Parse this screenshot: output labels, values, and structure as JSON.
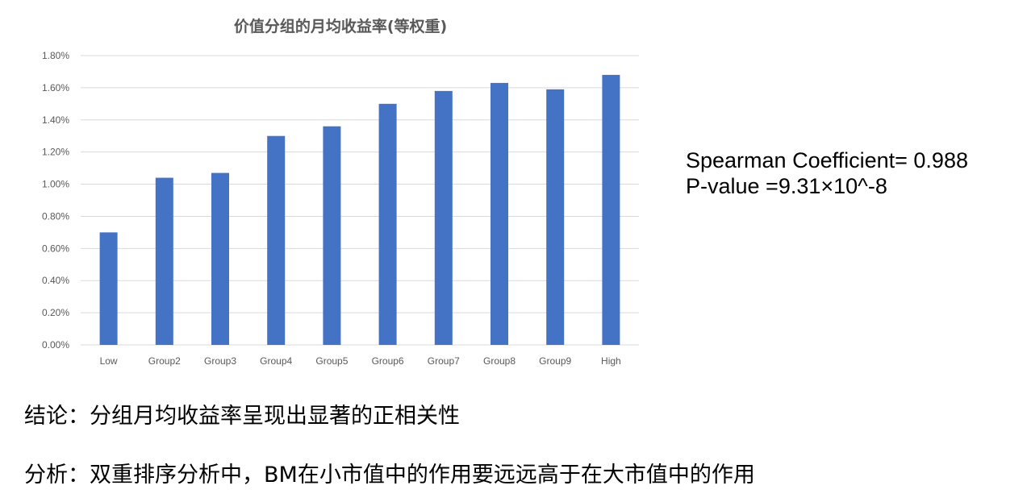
{
  "chart_data": {
    "type": "bar",
    "title": "价值分组的月均收益率(等权重)",
    "xlabel": "",
    "ylabel": "",
    "categories": [
      "Low",
      "Group2",
      "Group3",
      "Group4",
      "Group5",
      "Group6",
      "Group7",
      "Group8",
      "Group9",
      "High"
    ],
    "values": [
      0.7,
      1.04,
      1.07,
      1.3,
      1.36,
      1.5,
      1.58,
      1.63,
      1.59,
      1.68
    ],
    "value_unit": "%",
    "ylim": [
      0,
      1.8
    ],
    "y_ticks": [
      "0.00%",
      "0.20%",
      "0.40%",
      "0.60%",
      "0.80%",
      "1.00%",
      "1.20%",
      "1.40%",
      "1.60%",
      "1.80%"
    ],
    "grid": true,
    "legend": "none",
    "colors": {
      "bar": "#4472c4",
      "grid": "#d9d9d9",
      "axis_text": "#595959"
    }
  },
  "stats": {
    "spearman": "Spearman Coefficient= 0.988",
    "pvalue": "P-value =9.31×10^-8"
  },
  "notes": {
    "conclusion": "结论：分组月均收益率呈现出显著的正相关性",
    "analysis": "分析：双重排序分析中，BM在小市值中的作用要远远高于在大市值中的作用"
  }
}
